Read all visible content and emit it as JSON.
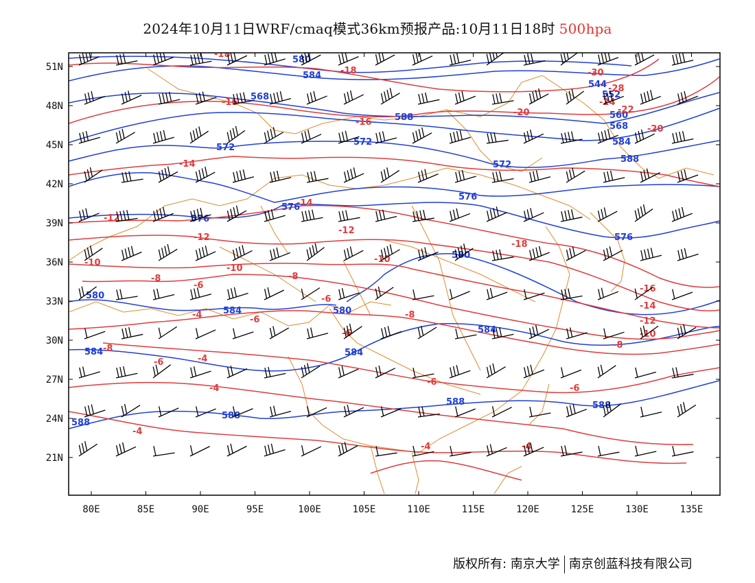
{
  "header": {
    "title": "2024年10月11日WRF/cmaq模式36km预报产品:10月11日18时",
    "level": "500hpa"
  },
  "map": {
    "lat_labels": [
      "51N",
      "48N",
      "45N",
      "42N",
      "39N",
      "36N",
      "33N",
      "30N",
      "27N",
      "24N",
      "21N"
    ],
    "lon_labels": [
      "80E",
      "85E",
      "90E",
      "95E",
      "100E",
      "105E",
      "110E",
      "115E",
      "120E",
      "125E",
      "130E",
      "135E"
    ],
    "colors": {
      "geopotential": "#1f3fd8",
      "temperature": "#e03b3b",
      "borders": "#e08a2a",
      "barbs": "#000000"
    },
    "geopotential_labels": [
      "580",
      "584",
      "568",
      "588",
      "572",
      "572",
      "572",
      "584",
      "576",
      "576",
      "576",
      "588",
      "576",
      "580",
      "584",
      "580",
      "580",
      "584",
      "584",
      "584",
      "588",
      "588",
      "588",
      "588",
      "544",
      "552",
      "560",
      "568"
    ],
    "temperature_labels": [
      "-18",
      "-18",
      "-16",
      "-16",
      "-14",
      "-14",
      "-12",
      "-12",
      "-12",
      "-10",
      "-10",
      "-10",
      "-8",
      "-8",
      "-8",
      "-8",
      "-6",
      "-6",
      "-6",
      "-6",
      "-6",
      "-4",
      "-4",
      "-4",
      "-4",
      "-6",
      "-18",
      "-16",
      "-14",
      "-12",
      "-10",
      "-8",
      "-20",
      "-30",
      "-28",
      "-24",
      "-22",
      "-20",
      "-6",
      "-4",
      "-4"
    ]
  },
  "footer": {
    "copyright": "版权所有: 南京大学",
    "company": "南京创蓝科技有限公司"
  }
}
